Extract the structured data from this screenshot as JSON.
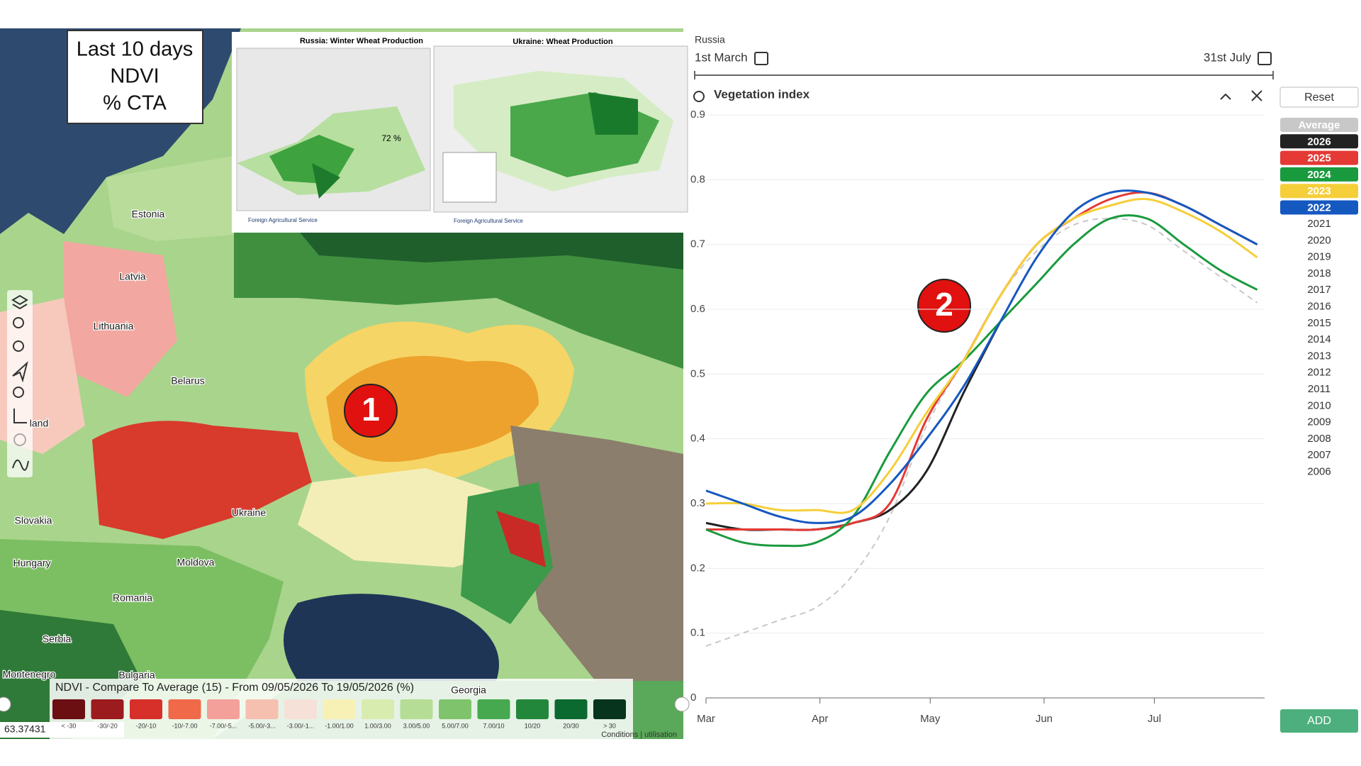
{
  "overlay_box": {
    "lines": [
      "Last 10 days",
      "NDVI",
      "% CTA"
    ]
  },
  "annotations": [
    "1",
    "2"
  ],
  "inset": {
    "russia_title": "Russia: Winter Wheat Production",
    "ukraine_title": "Ukraine: Wheat Production",
    "russia_share": "72 %",
    "agency": "Foreign Agricultural Service",
    "agency_2": "Foreign Agricultural Service"
  },
  "map_labels": [
    "Estonia",
    "Latvia",
    "Lithuania",
    "Belarus",
    "land",
    "Ukraine",
    "Slovakia",
    "Hungary",
    "Moldova",
    "Romania",
    "Serbia",
    "Montenegro",
    "Bulgaria",
    "Georgia"
  ],
  "legend": {
    "title": "NDVI - Compare To Average (15) - From 09/05/2026 To 19/05/2026 (%)",
    "classes": [
      {
        "label": "< -30",
        "color": "#6b0f12"
      },
      {
        "label": "-30/-20",
        "color": "#9b1b1e"
      },
      {
        "label": "-20/-10",
        "color": "#d7302a"
      },
      {
        "label": "-10/-7.00",
        "color": "#f06a4a"
      },
      {
        "label": "-7.00/-5...",
        "color": "#f4a09a"
      },
      {
        "label": "-5.00/-3...",
        "color": "#f6c0b0"
      },
      {
        "label": "-3.00/-1...",
        "color": "#f6e1d8"
      },
      {
        "label": "-1.00/1.00",
        "color": "#f7f1b5"
      },
      {
        "label": "1.00/3.00",
        "color": "#d9ecb0"
      },
      {
        "label": "3.00/5.00",
        "color": "#b5dd95"
      },
      {
        "label": "5.00/7.00",
        "color": "#7fc46c"
      },
      {
        "label": "7.00/10",
        "color": "#46a94f"
      },
      {
        "label": "10/20",
        "color": "#22873b"
      },
      {
        "label": "20/30",
        "color": "#0b6a2f"
      },
      {
        "label": "> 30",
        "color": "#07341c"
      }
    ]
  },
  "coordinates": "63.37431",
  "attribution": "Conditions | utilisation",
  "panel": {
    "region": "Russia",
    "start": "1st March",
    "end": "31st July",
    "reset": "Reset",
    "add": "ADD",
    "years": [
      "2021",
      "2020",
      "2019",
      "2018",
      "2017",
      "2016",
      "2015",
      "2014",
      "2013",
      "2012",
      "2011",
      "2010",
      "2009",
      "2008",
      "2007",
      "2006"
    ]
  },
  "chart_data": {
    "type": "line",
    "title": "Vegetation index",
    "x": [
      0,
      10,
      20,
      30,
      40,
      50,
      60,
      70,
      80,
      90,
      100,
      110,
      120,
      130,
      140,
      150
    ],
    "xlim": [
      0,
      152
    ],
    "xticks": [
      {
        "value": 0,
        "label": "Mar"
      },
      {
        "value": 31,
        "label": "Apr"
      },
      {
        "value": 61,
        "label": "May"
      },
      {
        "value": 92,
        "label": "Jun"
      },
      {
        "value": 122,
        "label": "Jul"
      }
    ],
    "ylim": [
      0,
      0.9
    ],
    "yticks": [
      0,
      0.1,
      0.2,
      0.3,
      0.4,
      0.5,
      0.6,
      0.7,
      0.8,
      0.9
    ],
    "grid": true,
    "series": [
      {
        "name": "Average",
        "color": "#c8c8c8",
        "dashed": true,
        "values": [
          0.08,
          0.1,
          0.12,
          0.14,
          0.19,
          0.28,
          0.42,
          0.52,
          0.62,
          0.69,
          0.73,
          0.74,
          0.73,
          0.69,
          0.65,
          0.61
        ]
      },
      {
        "name": "2026",
        "color": "#222222",
        "values": [
          0.27,
          0.26,
          0.26,
          0.26,
          0.27,
          0.29,
          0.35,
          0.47,
          0.58,
          null,
          null,
          null,
          null,
          null,
          null,
          null
        ]
      },
      {
        "name": "2025",
        "color": "#e53935",
        "values": [
          0.26,
          0.26,
          0.26,
          0.26,
          0.27,
          0.3,
          0.43,
          0.52,
          0.62,
          0.7,
          0.74,
          0.77,
          0.78,
          0.76,
          0.73,
          0.7
        ]
      },
      {
        "name": "2024",
        "color": "#1a9a3e",
        "values": [
          0.26,
          0.24,
          0.235,
          0.24,
          0.28,
          0.38,
          0.47,
          0.52,
          0.58,
          0.64,
          0.7,
          0.74,
          0.74,
          0.7,
          0.66,
          0.63
        ]
      },
      {
        "name": "2023",
        "color": "#f5cf3a",
        "values": [
          0.3,
          0.3,
          0.29,
          0.29,
          0.29,
          0.35,
          0.44,
          0.52,
          0.62,
          0.7,
          0.74,
          0.76,
          0.77,
          0.75,
          0.72,
          0.68
        ]
      },
      {
        "name": "2022",
        "color": "#1558c0",
        "values": [
          0.32,
          0.3,
          0.28,
          0.27,
          0.28,
          0.33,
          0.4,
          0.48,
          0.58,
          0.68,
          0.75,
          0.78,
          0.78,
          0.76,
          0.73,
          0.7
        ]
      }
    ]
  }
}
